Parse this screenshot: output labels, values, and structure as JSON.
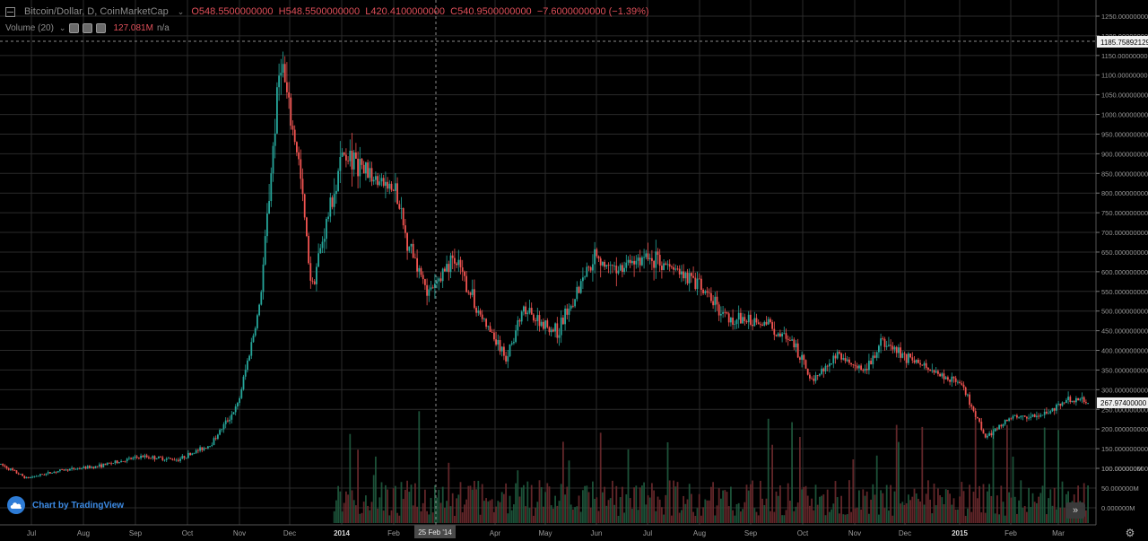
{
  "legend": {
    "symbol": "Bitcoin/Dollar, D, CoinMarketCap",
    "o_label": "O",
    "o_value": "548.5500000000",
    "h_label": "H",
    "h_value": "548.5500000000",
    "l_label": "L",
    "l_value": "420.4100000000",
    "c_label": "C",
    "c_value": "540.9500000000",
    "change": "−7.6000000000 (−1.39%)"
  },
  "volume_legend": {
    "label": "Volume (20)",
    "value": "127.081M",
    "extra": "n/a"
  },
  "brand": {
    "text": "Chart by TradingView"
  },
  "crosshair": {
    "date_label": "25 Feb '14"
  },
  "price_badges": {
    "top": "1185.758921290",
    "last": "267.97400000"
  },
  "colors": {
    "up": "#26a69a",
    "down": "#ef5350",
    "background": "#000000",
    "grid": "#2a2a2a",
    "badge": "#f0f0f0"
  },
  "icons": {
    "scroll_right": "double-chevron-right-icon",
    "settings": "gear-icon",
    "collapse": "collapse-square-icon"
  },
  "chart_data": {
    "type": "candlestick",
    "title": "Bitcoin/Dollar, D, CoinMarketCap",
    "x_ticks": [
      "Jul",
      "Aug",
      "Sep",
      "Oct",
      "Nov",
      "Dec",
      "2014",
      "Feb",
      "Apr",
      "May",
      "Jun",
      "Jul",
      "Aug",
      "Sep",
      "Oct",
      "Nov",
      "Dec",
      "2015",
      "Feb",
      "Mar"
    ],
    "y_ticks": [
      "1250.0000000000",
      "1200.0000000000",
      "1150.0000000000",
      "1100.0000000000",
      "1050.0000000000",
      "1000.0000000000",
      "950.0000000000",
      "900.0000000000",
      "850.0000000000",
      "800.0000000000",
      "750.0000000000",
      "700.0000000000",
      "650.0000000000",
      "600.0000000000",
      "550.0000000000",
      "500.0000000000",
      "450.0000000000",
      "400.0000000000",
      "350.0000000000",
      "300.0000000000",
      "250.0000000000",
      "200.0000000000",
      "150.0000000000",
      "100.0000000000"
    ],
    "volume_ticks": [
      "100.000000M",
      "50.000000M",
      "0.000000M"
    ],
    "ylim": [
      100,
      1250
    ],
    "price_path": [
      {
        "x": "2013-06-20",
        "y": 110
      },
      {
        "x": "2013-07-05",
        "y": 75
      },
      {
        "x": "2013-07-25",
        "y": 95
      },
      {
        "x": "2013-08-15",
        "y": 105
      },
      {
        "x": "2013-09-10",
        "y": 130
      },
      {
        "x": "2013-10-01",
        "y": 122
      },
      {
        "x": "2013-10-20",
        "y": 160
      },
      {
        "x": "2013-11-05",
        "y": 260
      },
      {
        "x": "2013-11-18",
        "y": 520
      },
      {
        "x": "2013-11-30",
        "y": 1150
      },
      {
        "x": "2013-12-05",
        "y": 1000
      },
      {
        "x": "2013-12-10",
        "y": 900
      },
      {
        "x": "2013-12-18",
        "y": 560
      },
      {
        "x": "2013-12-28",
        "y": 750
      },
      {
        "x": "2014-01-05",
        "y": 900
      },
      {
        "x": "2014-01-20",
        "y": 850
      },
      {
        "x": "2014-02-05",
        "y": 800
      },
      {
        "x": "2014-02-10",
        "y": 700
      },
      {
        "x": "2014-02-25",
        "y": 540
      },
      {
        "x": "2014-03-10",
        "y": 640
      },
      {
        "x": "2014-03-25",
        "y": 500
      },
      {
        "x": "2014-04-10",
        "y": 380
      },
      {
        "x": "2014-04-20",
        "y": 500
      },
      {
        "x": "2014-05-10",
        "y": 445
      },
      {
        "x": "2014-06-01",
        "y": 650
      },
      {
        "x": "2014-06-10",
        "y": 600
      },
      {
        "x": "2014-07-01",
        "y": 640
      },
      {
        "x": "2014-07-25",
        "y": 590
      },
      {
        "x": "2014-08-18",
        "y": 480
      },
      {
        "x": "2014-09-10",
        "y": 470
      },
      {
        "x": "2014-09-25",
        "y": 410
      },
      {
        "x": "2014-10-05",
        "y": 325
      },
      {
        "x": "2014-10-20",
        "y": 390
      },
      {
        "x": "2014-11-05",
        "y": 340
      },
      {
        "x": "2014-11-15",
        "y": 420
      },
      {
        "x": "2014-12-10",
        "y": 360
      },
      {
        "x": "2014-12-31",
        "y": 315
      },
      {
        "x": "2015-01-14",
        "y": 180
      },
      {
        "x": "2015-01-30",
        "y": 230
      },
      {
        "x": "2015-02-15",
        "y": 235
      },
      {
        "x": "2015-03-05",
        "y": 275
      },
      {
        "x": "2015-03-16",
        "y": 268
      }
    ]
  }
}
